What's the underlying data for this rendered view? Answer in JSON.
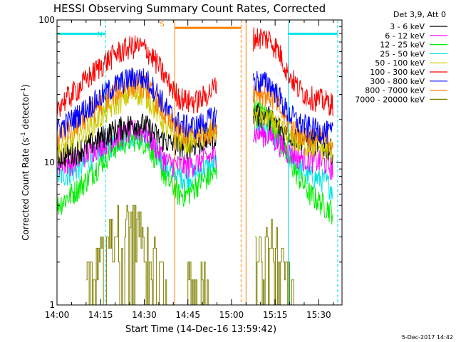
{
  "chart_data": {
    "type": "line",
    "title": "HESSI Observing Summary Count Rates, Corrected",
    "xlabel": "Start Time (14-Dec-16 13:59:42)",
    "ylabel_main": "Corrected Count Rate (s",
    "ylabel_sup1": "-1",
    "ylabel_mid": " detector",
    "ylabel_sup2": "-1",
    "ylabel_end": ")",
    "yscale": "log",
    "ylim": [
      1,
      100
    ],
    "xlim_minutes": [
      0,
      98
    ],
    "x_tick_labels": [
      {
        "label": "14:00",
        "minute": 0
      },
      {
        "label": "14:15",
        "minute": 15
      },
      {
        "label": "14:30",
        "minute": 30
      },
      {
        "label": "14:45",
        "minute": 45
      },
      {
        "label": "15:00",
        "minute": 60
      },
      {
        "label": "15:15",
        "minute": 75
      },
      {
        "label": "15:30",
        "minute": 90
      }
    ],
    "y_tick_labels": [
      {
        "label": "1",
        "value": 1
      },
      {
        "label": "10",
        "value": 10
      },
      {
        "label": "100",
        "value": 100
      }
    ],
    "legend_header": "Det 3,9, Att 0",
    "legend_position": "right",
    "footer_date": "5-Dec-2017 14:42",
    "data_gap_minutes": [
      55,
      67.5
    ],
    "series": [
      {
        "name": "3 - 6 keV",
        "color": "#000000",
        "points": [
          [
            0,
            11
          ],
          [
            5,
            11.5
          ],
          [
            10,
            13
          ],
          [
            15,
            15
          ],
          [
            20,
            17
          ],
          [
            25,
            18.5
          ],
          [
            28,
            19
          ],
          [
            31,
            18
          ],
          [
            35,
            15
          ],
          [
            38,
            14
          ],
          [
            42,
            13
          ],
          [
            45,
            13
          ],
          [
            48,
            13.5
          ],
          [
            50,
            14
          ],
          [
            53,
            15
          ],
          [
            55,
            16
          ],
          [
            67.5,
            22
          ],
          [
            70,
            21.5
          ],
          [
            73,
            21
          ],
          [
            76,
            18
          ],
          [
            79,
            16
          ],
          [
            83,
            15
          ],
          [
            87,
            14.5
          ],
          [
            92,
            13
          ],
          [
            95,
            12
          ]
        ]
      },
      {
        "name": "6 - 12 keV",
        "color": "#ff00ff",
        "points": [
          [
            0,
            10
          ],
          [
            5,
            10
          ],
          [
            10,
            11.5
          ],
          [
            15,
            13.5
          ],
          [
            20,
            15
          ],
          [
            25,
            16.5
          ],
          [
            28,
            17
          ],
          [
            31,
            16
          ],
          [
            35,
            12
          ],
          [
            38,
            10
          ],
          [
            42,
            9.5
          ],
          [
            45,
            9.5
          ],
          [
            48,
            10
          ],
          [
            50,
            10.5
          ],
          [
            53,
            11
          ],
          [
            55,
            11.5
          ],
          [
            67.5,
            16
          ],
          [
            70,
            16
          ],
          [
            73,
            15.5
          ],
          [
            76,
            14
          ],
          [
            79,
            12
          ],
          [
            83,
            11
          ],
          [
            87,
            10.5
          ],
          [
            92,
            10
          ],
          [
            95,
            9
          ]
        ]
      },
      {
        "name": "12 - 25 keV",
        "color": "#00ee00",
        "points": [
          [
            0,
            5
          ],
          [
            5,
            6
          ],
          [
            10,
            7.5
          ],
          [
            15,
            10
          ],
          [
            20,
            13
          ],
          [
            25,
            14.5
          ],
          [
            28,
            15
          ],
          [
            31,
            13.5
          ],
          [
            35,
            10
          ],
          [
            38,
            7.5
          ],
          [
            42,
            6
          ],
          [
            45,
            6
          ],
          [
            48,
            7
          ],
          [
            50,
            7.5
          ],
          [
            53,
            8
          ],
          [
            55,
            8.5
          ],
          [
            67.5,
            24
          ],
          [
            70,
            23
          ],
          [
            73,
            21
          ],
          [
            76,
            16
          ],
          [
            79,
            11
          ],
          [
            83,
            8
          ],
          [
            87,
            6
          ],
          [
            92,
            5
          ],
          [
            95,
            4.5
          ]
        ]
      },
      {
        "name": "25 - 50 keV",
        "color": "#00e5e5",
        "points": [
          [
            0,
            8
          ],
          [
            5,
            8.5
          ],
          [
            10,
            10
          ],
          [
            15,
            12
          ],
          [
            20,
            14
          ],
          [
            25,
            15.5
          ],
          [
            28,
            16
          ],
          [
            31,
            15
          ],
          [
            35,
            11
          ],
          [
            38,
            9
          ],
          [
            42,
            8
          ],
          [
            45,
            8
          ],
          [
            48,
            8.5
          ],
          [
            50,
            9
          ],
          [
            53,
            9.5
          ],
          [
            55,
            10
          ],
          [
            67.5,
            18
          ],
          [
            70,
            17.5
          ],
          [
            73,
            16.5
          ],
          [
            76,
            14
          ],
          [
            79,
            11.5
          ],
          [
            83,
            9.5
          ],
          [
            87,
            8
          ],
          [
            92,
            7.5
          ],
          [
            95,
            6.5
          ]
        ]
      },
      {
        "name": "50 - 100 keV",
        "color": "#cccc00",
        "points": [
          [
            0,
            12
          ],
          [
            5,
            14
          ],
          [
            10,
            17
          ],
          [
            15,
            21
          ],
          [
            20,
            26
          ],
          [
            25,
            30
          ],
          [
            28,
            31
          ],
          [
            31,
            29
          ],
          [
            35,
            22
          ],
          [
            38,
            17
          ],
          [
            42,
            14.5
          ],
          [
            45,
            14
          ],
          [
            48,
            15
          ],
          [
            50,
            15.5
          ],
          [
            53,
            16
          ],
          [
            55,
            17
          ],
          [
            67.5,
            21
          ],
          [
            70,
            21
          ],
          [
            73,
            20
          ],
          [
            76,
            18
          ],
          [
            79,
            15
          ],
          [
            83,
            14
          ],
          [
            87,
            13
          ],
          [
            92,
            12.5
          ],
          [
            95,
            12
          ]
        ]
      },
      {
        "name": "100 - 300 keV",
        "color": "#ff0000",
        "points": [
          [
            0,
            25
          ],
          [
            5,
            30
          ],
          [
            10,
            38
          ],
          [
            15,
            48
          ],
          [
            20,
            58
          ],
          [
            25,
            65
          ],
          [
            28,
            66
          ],
          [
            31,
            62
          ],
          [
            35,
            48
          ],
          [
            38,
            37
          ],
          [
            42,
            29
          ],
          [
            45,
            27
          ],
          [
            48,
            27
          ],
          [
            50,
            28.5
          ],
          [
            53,
            32
          ],
          [
            55,
            36
          ],
          [
            67.5,
            75
          ],
          [
            70,
            76
          ],
          [
            73,
            74
          ],
          [
            76,
            62
          ],
          [
            79,
            45
          ],
          [
            83,
            33
          ],
          [
            87,
            29
          ],
          [
            92,
            27
          ],
          [
            95,
            26
          ]
        ]
      },
      {
        "name": "300 - 800 keV",
        "color": "#0000ff",
        "points": [
          [
            0,
            17
          ],
          [
            5,
            20
          ],
          [
            10,
            24
          ],
          [
            15,
            29
          ],
          [
            20,
            35
          ],
          [
            25,
            39
          ],
          [
            28,
            40
          ],
          [
            31,
            38
          ],
          [
            35,
            30
          ],
          [
            38,
            23
          ],
          [
            42,
            19
          ],
          [
            45,
            18
          ],
          [
            48,
            18
          ],
          [
            50,
            19
          ],
          [
            53,
            20.5
          ],
          [
            55,
            22
          ],
          [
            67.5,
            38
          ],
          [
            70,
            37
          ],
          [
            73,
            36
          ],
          [
            76,
            30
          ],
          [
            79,
            23
          ],
          [
            83,
            19
          ],
          [
            87,
            17.5
          ],
          [
            92,
            16.5
          ],
          [
            95,
            16
          ]
        ]
      },
      {
        "name": "800 - 7000 keV",
        "color": "#ff8000",
        "points": [
          [
            0,
            15
          ],
          [
            5,
            17
          ],
          [
            10,
            21
          ],
          [
            15,
            26
          ],
          [
            20,
            31
          ],
          [
            25,
            35
          ],
          [
            28,
            36
          ],
          [
            31,
            34
          ],
          [
            35,
            26
          ],
          [
            38,
            20
          ],
          [
            42,
            16.5
          ],
          [
            45,
            15.5
          ],
          [
            48,
            15.5
          ],
          [
            50,
            16
          ],
          [
            53,
            17
          ],
          [
            55,
            18
          ],
          [
            67.5,
            32
          ],
          [
            70,
            31
          ],
          [
            73,
            30
          ],
          [
            76,
            25
          ],
          [
            79,
            19.5
          ],
          [
            83,
            16
          ],
          [
            87,
            15
          ],
          [
            92,
            14.5
          ],
          [
            95,
            14
          ]
        ]
      },
      {
        "name": "7000 - 20000 keV",
        "color": "#808000",
        "points": [
          [
            10,
            1.5
          ],
          [
            12,
            1.8
          ],
          [
            14,
            2.2
          ],
          [
            16,
            2.6
          ],
          [
            18,
            3.0
          ],
          [
            20,
            3.4
          ],
          [
            22,
            3.8
          ],
          [
            24,
            4.0
          ],
          [
            26,
            3.8
          ],
          [
            28,
            3.4
          ],
          [
            30,
            2.9
          ],
          [
            32,
            2.4
          ],
          [
            34,
            2.0
          ],
          [
            36,
            1.7
          ],
          [
            38,
            1.4
          ],
          [
            44,
            1.4
          ],
          [
            46,
            1.6
          ],
          [
            48,
            1.7
          ],
          [
            50,
            1.7
          ],
          [
            52,
            1.5
          ],
          [
            68,
            2.0
          ],
          [
            70,
            2.6
          ],
          [
            72,
            3.0
          ],
          [
            74,
            2.8
          ],
          [
            76,
            2.4
          ],
          [
            78,
            1.9
          ],
          [
            80,
            1.5
          ],
          [
            82,
            1.3
          ]
        ]
      }
    ],
    "annotations": {
      "bars": [
        {
          "label": "N",
          "color": "#00e5e5",
          "from": 0,
          "to": 16.7,
          "value": 80
        },
        {
          "label": "S",
          "color": "#ff8000",
          "from": 40.5,
          "to": 63.3,
          "value": 88
        },
        {
          "label": "",
          "color": "#00e5e5",
          "from": 79.5,
          "to": 96.5,
          "value": 80
        }
      ],
      "vlines": [
        {
          "x": 0,
          "color": "#00e5e5",
          "dash": false
        },
        {
          "x": 16.7,
          "color": "#00e5e5",
          "dash": true
        },
        {
          "x": 40.5,
          "color": "#ff8000",
          "dash": false
        },
        {
          "x": 63.3,
          "color": "#ff8000",
          "dash": true
        },
        {
          "x": 65,
          "color": "#ff8000",
          "dash": false
        },
        {
          "x": 79.5,
          "color": "#00e5e5",
          "dash": false
        },
        {
          "x": 96.5,
          "color": "#00e5e5",
          "dash": true
        }
      ]
    }
  }
}
